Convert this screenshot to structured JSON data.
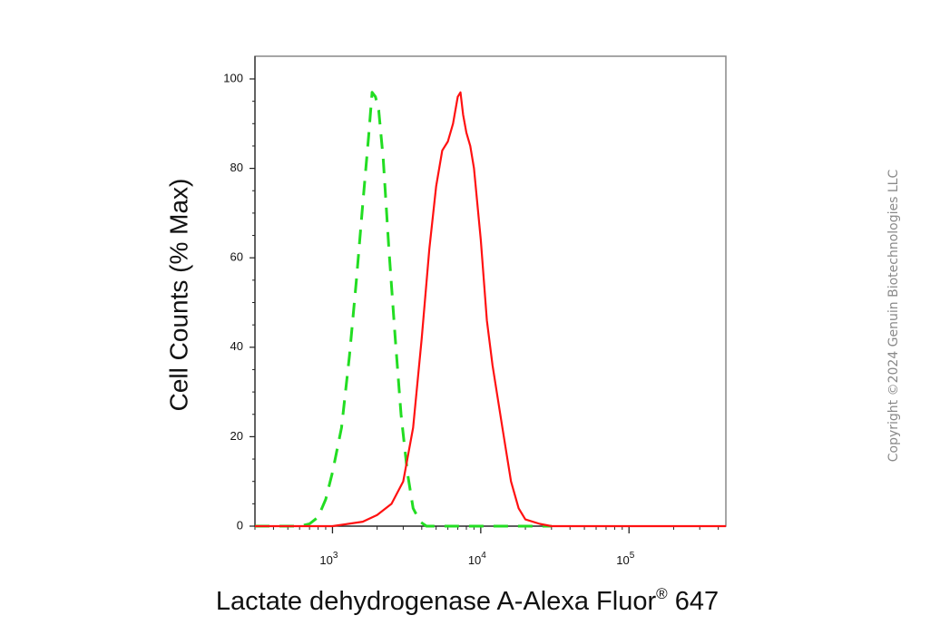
{
  "chart_data": {
    "type": "line",
    "xlabel": "Lactate dehydrogenase A-Alexa Fluor",
    "xlabel_superscript": "®",
    "xlabel_suffix": " 647",
    "ylabel": "Cell Counts (% Max)",
    "xscale": "log",
    "xlim": [
      300,
      450000
    ],
    "ylim": [
      0,
      100
    ],
    "y_ticks": [
      0,
      20,
      40,
      60,
      80,
      100
    ],
    "x_tick_labels": [
      {
        "value": 1000,
        "base": "10",
        "exp": "3"
      },
      {
        "value": 10000,
        "base": "10",
        "exp": "4"
      },
      {
        "value": 100000,
        "base": "10",
        "exp": "5"
      }
    ],
    "grid": false,
    "series": [
      {
        "color": "#22dd22",
        "style": "dashed",
        "x": [
          300,
          600,
          700,
          800,
          900,
          1000,
          1150,
          1300,
          1450,
          1600,
          1750,
          1850,
          1950,
          2050,
          2200,
          2400,
          2650,
          2900,
          3200,
          3500,
          3900,
          4300,
          5000,
          10000,
          30000
        ],
        "y": [
          0,
          0,
          0.5,
          2,
          6,
          12,
          22,
          38,
          55,
          72,
          87,
          97,
          96,
          93,
          82,
          62,
          42,
          25,
          12,
          4,
          1,
          0,
          0,
          0,
          0
        ]
      },
      {
        "color": "#ff1111",
        "style": "solid",
        "x": [
          300,
          1000,
          1600,
          2000,
          2500,
          3000,
          3500,
          4000,
          4500,
          5000,
          5500,
          6000,
          6500,
          7000,
          7300,
          7600,
          8000,
          8500,
          9000,
          10000,
          11000,
          12000,
          14000,
          16000,
          18000,
          20000,
          25000,
          30000,
          40000,
          100000,
          450000
        ],
        "y": [
          0,
          0,
          1,
          2.5,
          5,
          10,
          22,
          42,
          62,
          76,
          84,
          86,
          90,
          96,
          97,
          92,
          88,
          85,
          80,
          64,
          46,
          36,
          22,
          10,
          4,
          1.5,
          0.5,
          0,
          0,
          0,
          0
        ]
      }
    ]
  },
  "copyright": "Copyright ©2024 Genuin Biotechnologies LLC"
}
